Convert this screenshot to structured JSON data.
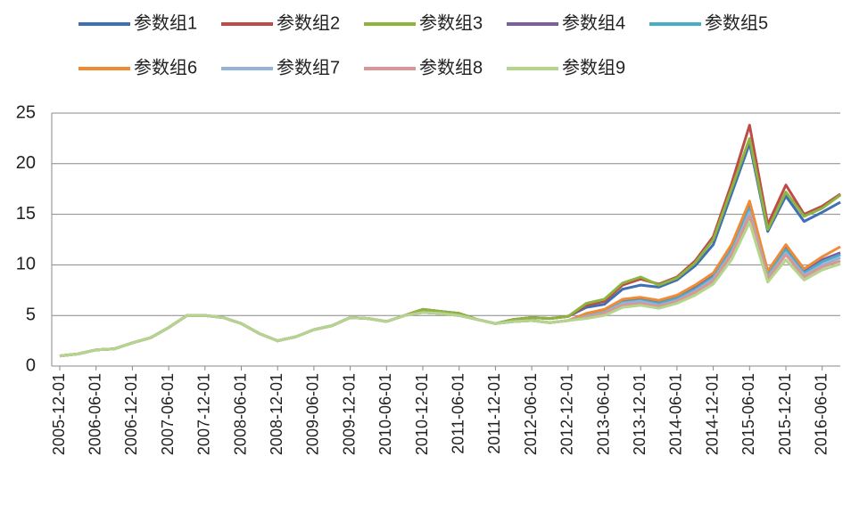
{
  "chart_data": {
    "type": "line",
    "categories": [
      "2005-12-01",
      null,
      "2006-06-01",
      null,
      "2006-12-01",
      null,
      "2007-06-01",
      null,
      "2007-12-01",
      null,
      "2008-06-01",
      null,
      "2008-12-01",
      null,
      "2009-06-01",
      null,
      "2009-12-01",
      null,
      "2010-06-01",
      null,
      "2010-12-01",
      null,
      "2011-06-01",
      null,
      "2011-12-01",
      null,
      "2012-06-01",
      null,
      "2012-12-01",
      null,
      "2013-06-01",
      null,
      "2013-12-01",
      null,
      "2014-06-01",
      null,
      "2014-12-01",
      null,
      "2015-06-01",
      null,
      "2015-12-01",
      null,
      "2016-06-01",
      null
    ],
    "ylim": [
      0,
      25
    ],
    "yticks": [
      0,
      5,
      10,
      15,
      20,
      25
    ],
    "grid": true,
    "series": [
      {
        "name": "参数组1",
        "color": "#3f6fb5",
        "values": [
          1.0,
          1.2,
          1.6,
          1.7,
          2.3,
          2.8,
          3.8,
          5.0,
          5.0,
          4.8,
          4.2,
          3.2,
          2.5,
          2.9,
          3.6,
          4.0,
          4.8,
          4.7,
          4.4,
          5.0,
          5.6,
          5.4,
          5.2,
          4.6,
          4.2,
          4.6,
          4.8,
          4.7,
          4.9,
          5.8,
          6.1,
          7.6,
          8.0,
          7.8,
          8.5,
          9.9,
          12.0,
          17.0,
          22.0,
          13.3,
          16.8,
          14.3,
          15.2,
          16.2
        ]
      },
      {
        "name": "参数组2",
        "color": "#be4b48",
        "values": [
          1.0,
          1.2,
          1.6,
          1.7,
          2.3,
          2.8,
          3.8,
          5.0,
          5.0,
          4.8,
          4.2,
          3.2,
          2.5,
          2.9,
          3.6,
          4.0,
          4.8,
          4.7,
          4.4,
          5.0,
          5.6,
          5.4,
          5.2,
          4.6,
          4.2,
          4.6,
          4.8,
          4.7,
          4.9,
          6.0,
          6.4,
          8.0,
          8.6,
          8.1,
          8.8,
          10.4,
          12.8,
          18.0,
          23.8,
          14.0,
          17.9,
          15.0,
          15.8,
          17.0
        ]
      },
      {
        "name": "参数组3",
        "color": "#8db43f",
        "values": [
          1.0,
          1.2,
          1.6,
          1.7,
          2.3,
          2.8,
          3.8,
          5.0,
          5.0,
          4.8,
          4.2,
          3.2,
          2.5,
          2.9,
          3.6,
          4.0,
          4.8,
          4.7,
          4.4,
          5.0,
          5.6,
          5.4,
          5.2,
          4.6,
          4.2,
          4.6,
          4.8,
          4.7,
          4.9,
          6.2,
          6.6,
          8.2,
          8.8,
          8.0,
          8.7,
          10.2,
          12.5,
          17.5,
          22.5,
          13.5,
          17.2,
          14.8,
          15.6,
          16.9
        ]
      },
      {
        "name": "参数组4",
        "color": "#7d5fa0",
        "values": [
          1.0,
          1.2,
          1.6,
          1.7,
          2.3,
          2.8,
          3.8,
          5.0,
          5.0,
          4.8,
          4.2,
          3.2,
          2.5,
          2.9,
          3.6,
          4.0,
          4.8,
          4.7,
          4.4,
          5.0,
          5.3,
          5.2,
          5.0,
          4.6,
          4.2,
          4.4,
          4.5,
          4.3,
          4.5,
          5.1,
          5.5,
          6.4,
          6.6,
          6.3,
          6.8,
          7.8,
          9.0,
          11.8,
          16.0,
          9.2,
          11.8,
          9.4,
          10.5,
          11.2
        ]
      },
      {
        "name": "参数组5",
        "color": "#4bacc6",
        "values": [
          1.0,
          1.2,
          1.6,
          1.7,
          2.3,
          2.8,
          3.8,
          5.0,
          5.0,
          4.8,
          4.2,
          3.2,
          2.5,
          2.9,
          3.6,
          4.0,
          4.8,
          4.7,
          4.4,
          5.0,
          5.3,
          5.2,
          5.0,
          4.6,
          4.2,
          4.4,
          4.5,
          4.3,
          4.5,
          5.0,
          5.4,
          6.3,
          6.5,
          6.2,
          6.7,
          7.6,
          8.8,
          11.5,
          15.6,
          9.0,
          11.5,
          9.2,
          10.3,
          11.0
        ]
      },
      {
        "name": "参数组6",
        "color": "#f08a35",
        "values": [
          1.0,
          1.2,
          1.6,
          1.7,
          2.3,
          2.8,
          3.8,
          5.0,
          5.0,
          4.8,
          4.2,
          3.2,
          2.5,
          2.9,
          3.6,
          4.0,
          4.8,
          4.7,
          4.4,
          5.0,
          5.3,
          5.2,
          5.0,
          4.6,
          4.2,
          4.4,
          4.5,
          4.3,
          4.5,
          5.2,
          5.6,
          6.6,
          6.8,
          6.5,
          7.0,
          8.0,
          9.2,
          12.0,
          16.3,
          9.4,
          12.0,
          9.6,
          10.8,
          11.8
        ]
      },
      {
        "name": "参数组7",
        "color": "#95b3d7",
        "values": [
          1.0,
          1.2,
          1.6,
          1.7,
          2.3,
          2.8,
          3.8,
          5.0,
          5.0,
          4.8,
          4.2,
          3.2,
          2.5,
          2.9,
          3.6,
          4.0,
          4.8,
          4.7,
          4.4,
          5.0,
          5.3,
          5.2,
          5.0,
          4.6,
          4.2,
          4.4,
          4.5,
          4.3,
          4.5,
          4.9,
          5.3,
          6.2,
          6.4,
          6.0,
          6.5,
          7.4,
          8.6,
          11.2,
          15.2,
          8.8,
          11.2,
          9.0,
          10.0,
          10.7
        ]
      },
      {
        "name": "参数组8",
        "color": "#d99694",
        "values": [
          1.0,
          1.2,
          1.6,
          1.7,
          2.3,
          2.8,
          3.8,
          5.0,
          5.0,
          4.8,
          4.2,
          3.2,
          2.5,
          2.9,
          3.6,
          4.0,
          4.8,
          4.7,
          4.4,
          5.0,
          5.3,
          5.2,
          5.0,
          4.6,
          4.2,
          4.4,
          4.5,
          4.3,
          4.5,
          4.8,
          5.2,
          6.0,
          6.2,
          5.9,
          6.4,
          7.3,
          8.4,
          11.0,
          14.8,
          8.6,
          11.0,
          8.8,
          9.8,
          10.4
        ]
      },
      {
        "name": "参数组9",
        "color": "#b3d58c",
        "values": [
          1.0,
          1.2,
          1.6,
          1.7,
          2.3,
          2.8,
          3.8,
          5.0,
          5.0,
          4.8,
          4.2,
          3.2,
          2.5,
          2.9,
          3.6,
          4.0,
          4.8,
          4.7,
          4.4,
          5.0,
          5.3,
          5.2,
          5.0,
          4.6,
          4.2,
          4.4,
          4.5,
          4.3,
          4.5,
          4.7,
          5.0,
          5.8,
          6.0,
          5.7,
          6.2,
          7.0,
          8.1,
          10.5,
          14.2,
          8.3,
          10.5,
          8.5,
          9.5,
          10.1
        ]
      }
    ]
  }
}
